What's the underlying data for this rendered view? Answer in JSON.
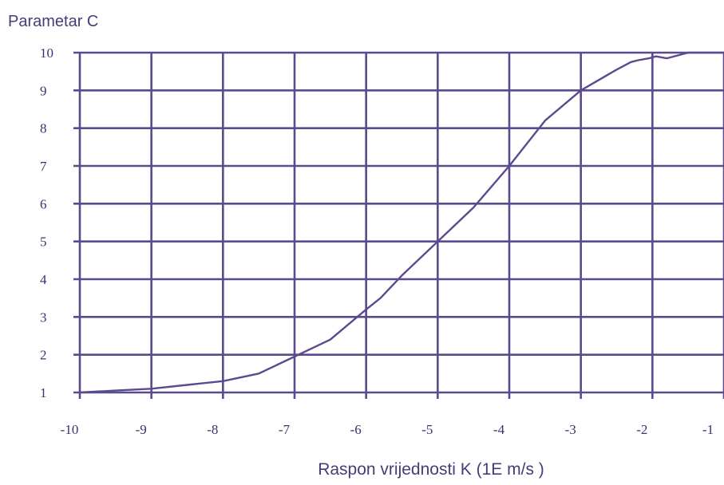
{
  "chart_data": {
    "type": "line",
    "title": "",
    "ylabel": "Parametar C",
    "xlabel": "Raspon vrijednosti  K (1E m/s )",
    "xlim": [
      -10,
      -1
    ],
    "ylim": [
      1,
      10
    ],
    "x_ticks": [
      "-10",
      "-9",
      "-8",
      "-7",
      "-6",
      "-5",
      "-4",
      "-3",
      "-2",
      "-1"
    ],
    "y_ticks": [
      "1",
      "2",
      "3",
      "4",
      "5",
      "6",
      "7",
      "8",
      "9",
      "10"
    ],
    "grid": true,
    "legend": "none",
    "colors": {
      "line": "#5b4a8e",
      "grid": "#5b4a8e",
      "text": "#4a3a78"
    },
    "series": [
      {
        "values_x": [
          -10,
          -9.5,
          -9,
          -8.5,
          -8,
          -7.5,
          -7,
          -6.5,
          -6,
          -5.8,
          -5.5,
          -5,
          -4.5,
          -4,
          -3.5,
          -3,
          -2.5,
          -2.3,
          -2.2,
          -2.05,
          -1.95,
          -1.8,
          -1.6,
          -1.5,
          -1
        ],
        "values_y": [
          1,
          1.05,
          1.1,
          1.2,
          1.3,
          1.5,
          1.95,
          2.4,
          3.2,
          3.5,
          4.1,
          5,
          5.9,
          7,
          8.2,
          9,
          9.55,
          9.75,
          9.8,
          9.85,
          9.9,
          9.85,
          9.95,
          10,
          10
        ]
      }
    ]
  }
}
